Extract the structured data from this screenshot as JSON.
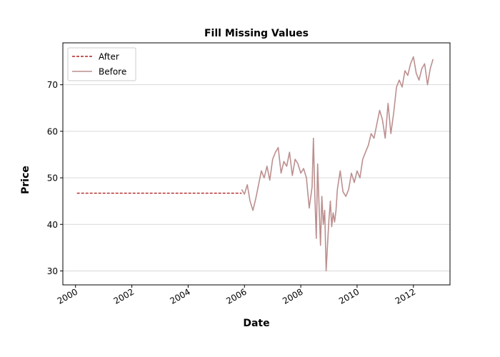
{
  "chart_data": {
    "type": "line",
    "title": "Fill Missing Values",
    "xlabel": "Date",
    "ylabel": "Price",
    "xlim": [
      1999.55,
      2013.3
    ],
    "ylim": [
      27.0,
      79.0
    ],
    "x_ticks": [
      2000,
      2002,
      2004,
      2006,
      2008,
      2010,
      2012
    ],
    "x_tick_labels": [
      "2000",
      "2002",
      "2004",
      "2006",
      "2008",
      "2010",
      "2012"
    ],
    "y_ticks": [
      30,
      40,
      50,
      60,
      70
    ],
    "y_tick_labels": [
      "30",
      "40",
      "50",
      "60",
      "70"
    ],
    "grid": "y-only",
    "legend": "top-left",
    "series": [
      {
        "name": "After",
        "style": "dashed",
        "color": "#b22222",
        "x": [
          2000.05,
          2005.9
        ],
        "y": [
          46.7,
          46.7
        ]
      },
      {
        "name": "Before",
        "style": "solid",
        "color": "#bc8f8f",
        "x": [
          2005.9,
          2006.0,
          2006.1,
          2006.2,
          2006.3,
          2006.4,
          2006.5,
          2006.6,
          2006.7,
          2006.8,
          2006.9,
          2007.0,
          2007.1,
          2007.2,
          2007.3,
          2007.4,
          2007.5,
          2007.6,
          2007.7,
          2007.8,
          2007.9,
          2008.0,
          2008.1,
          2008.2,
          2008.3,
          2008.4,
          2008.45,
          2008.5,
          2008.55,
          2008.6,
          2008.65,
          2008.7,
          2008.75,
          2008.8,
          2008.85,
          2008.9,
          2008.95,
          2009.0,
          2009.05,
          2009.1,
          2009.15,
          2009.2,
          2009.25,
          2009.3,
          2009.4,
          2009.5,
          2009.6,
          2009.7,
          2009.8,
          2009.9,
          2010.0,
          2010.1,
          2010.2,
          2010.3,
          2010.4,
          2010.5,
          2010.6,
          2010.7,
          2010.8,
          2010.9,
          2011.0,
          2011.1,
          2011.2,
          2011.3,
          2011.4,
          2011.5,
          2011.6,
          2011.7,
          2011.8,
          2011.9,
          2012.0,
          2012.1,
          2012.2,
          2012.3,
          2012.4,
          2012.5,
          2012.6,
          2012.7
        ],
        "y": [
          47.5,
          46.5,
          48.5,
          45.0,
          43.0,
          45.5,
          48.5,
          51.5,
          50.0,
          52.5,
          49.5,
          54.0,
          55.5,
          56.5,
          51.0,
          53.5,
          52.5,
          55.5,
          50.5,
          54.0,
          53.0,
          51.0,
          52.0,
          50.0,
          43.5,
          48.0,
          58.5,
          46.0,
          37.0,
          53.0,
          44.0,
          35.5,
          46.0,
          40.0,
          43.0,
          30.0,
          35.5,
          41.0,
          45.0,
          39.5,
          42.5,
          40.5,
          43.0,
          47.5,
          51.5,
          47.0,
          46.0,
          47.5,
          51.0,
          49.0,
          51.5,
          50.0,
          54.0,
          55.5,
          57.0,
          59.5,
          58.5,
          61.5,
          64.5,
          62.5,
          58.5,
          66.0,
          59.5,
          64.0,
          69.5,
          71.0,
          69.5,
          73.0,
          72.0,
          74.5,
          76.0,
          72.5,
          71.0,
          73.5,
          74.5,
          70.0,
          73.5,
          75.5
        ]
      }
    ]
  }
}
